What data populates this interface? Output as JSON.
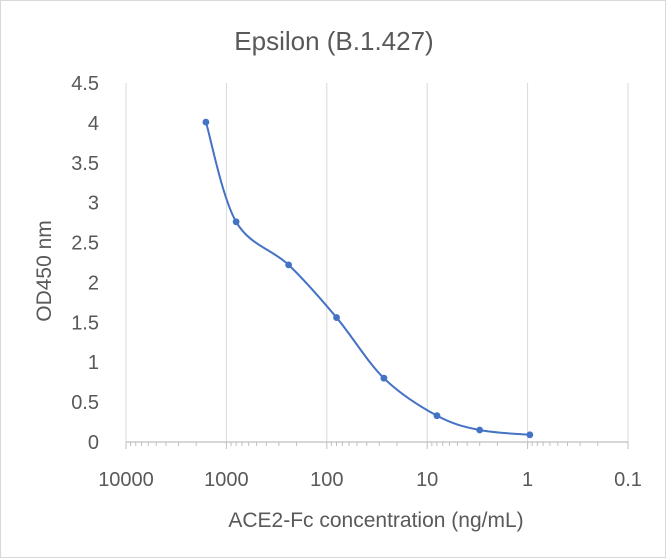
{
  "chart_data": {
    "type": "line",
    "title": "Epsilon (B.1.427)",
    "xlabel": "ACE2-Fc concentration (ng/mL)",
    "ylabel": "OD450 nm",
    "x_scale": "log",
    "x_reversed": true,
    "xlim": [
      10000,
      0.1
    ],
    "ylim": [
      0,
      4.5
    ],
    "x_tick_labels": [
      "10000",
      "1000",
      "100",
      "10",
      "1",
      "0.1"
    ],
    "x_ticks": [
      10000,
      1000,
      100,
      10,
      1,
      0.1
    ],
    "y_tick_labels": [
      "0",
      "0.5",
      "1",
      "1.5",
      "2",
      "2.5",
      "3",
      "3.5",
      "4",
      "4.5"
    ],
    "y_ticks": [
      0,
      0.5,
      1,
      1.5,
      2,
      2.5,
      3,
      3.5,
      4,
      4.5
    ],
    "grid": "vertical",
    "legend": "none",
    "series": [
      {
        "color": "#4472c4",
        "x": [
          1600,
          800,
          240,
          80,
          27,
          8,
          3,
          0.95
        ],
        "y": [
          4.01,
          2.76,
          2.22,
          1.56,
          0.8,
          0.33,
          0.15,
          0.09
        ]
      }
    ]
  }
}
